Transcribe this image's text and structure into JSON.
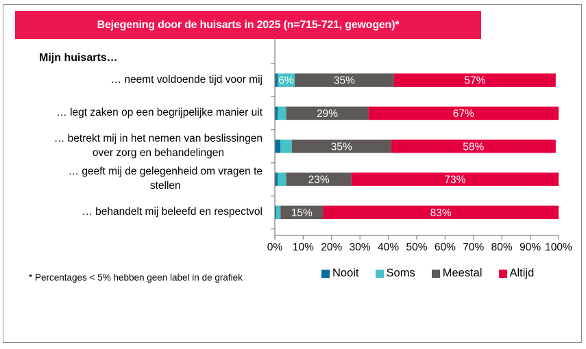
{
  "title": "Bejegening door de huisarts in 2025 (n=715-721, gewogen)*",
  "colors": {
    "banner": "#ED1651",
    "frame": "#8A8A8A",
    "axis": "#868686"
  },
  "subhead": "Mijn huisarts…",
  "footnote": "* Percentages  < 5% hebben geen label in de grafiek",
  "chart_data": {
    "type": "bar",
    "orientation": "horizontal",
    "stacked": "100%",
    "title": "Bejegening door de huisarts in 2025 (n=715-721, gewogen)*",
    "xlabel": "",
    "ylabel": "Mijn huisarts…",
    "xlim": [
      0,
      100
    ],
    "x_ticks": [
      "0%",
      "10%",
      "20%",
      "30%",
      "40%",
      "50%",
      "60%",
      "70%",
      "80%",
      "90%",
      "100%"
    ],
    "grid": false,
    "legend_position": "bottom",
    "label_threshold_note": "Percentages < 5% hebben geen label in de grafiek",
    "categories": [
      "… neemt voldoende tijd voor mij",
      "… legt zaken op een begrijpelijke manier uit",
      "… betrekt mij in het nemen van beslissingen over zorg en behandelingen",
      "… geeft mij de gelegenheid om vragen te stellen",
      "… behandelt mij beleefd en respectvol"
    ],
    "category_lines": [
      [
        "… neemt voldoende tijd voor mij"
      ],
      [
        "… legt zaken op een begrijpelijke manier uit"
      ],
      [
        "… betrekt mij in het nemen van beslissingen",
        "over zorg en behandelingen"
      ],
      [
        "… geeft mij de gelegenheid om vragen te",
        "stellen"
      ],
      [
        "… behandelt mij beleefd en respectvol"
      ]
    ],
    "series": [
      {
        "name": "Nooit",
        "color": "#0A6E9C",
        "values": [
          1,
          1,
          2,
          1,
          0.5
        ]
      },
      {
        "name": "Soms",
        "color": "#45C2C8",
        "values": [
          6,
          3,
          4,
          3,
          1.5
        ]
      },
      {
        "name": "Meestal",
        "color": "#5F5A57",
        "values": [
          35,
          29,
          35,
          23,
          15
        ]
      },
      {
        "name": "Altijd",
        "color": "#E4003F",
        "values": [
          57,
          67,
          58,
          73,
          83
        ]
      }
    ],
    "data_labels": [
      [
        null,
        "6%",
        "35%",
        "57%"
      ],
      [
        null,
        null,
        "29%",
        "67%"
      ],
      [
        null,
        null,
        "35%",
        "58%"
      ],
      [
        null,
        null,
        "23%",
        "73%"
      ],
      [
        null,
        null,
        "15%",
        "83%"
      ]
    ]
  }
}
